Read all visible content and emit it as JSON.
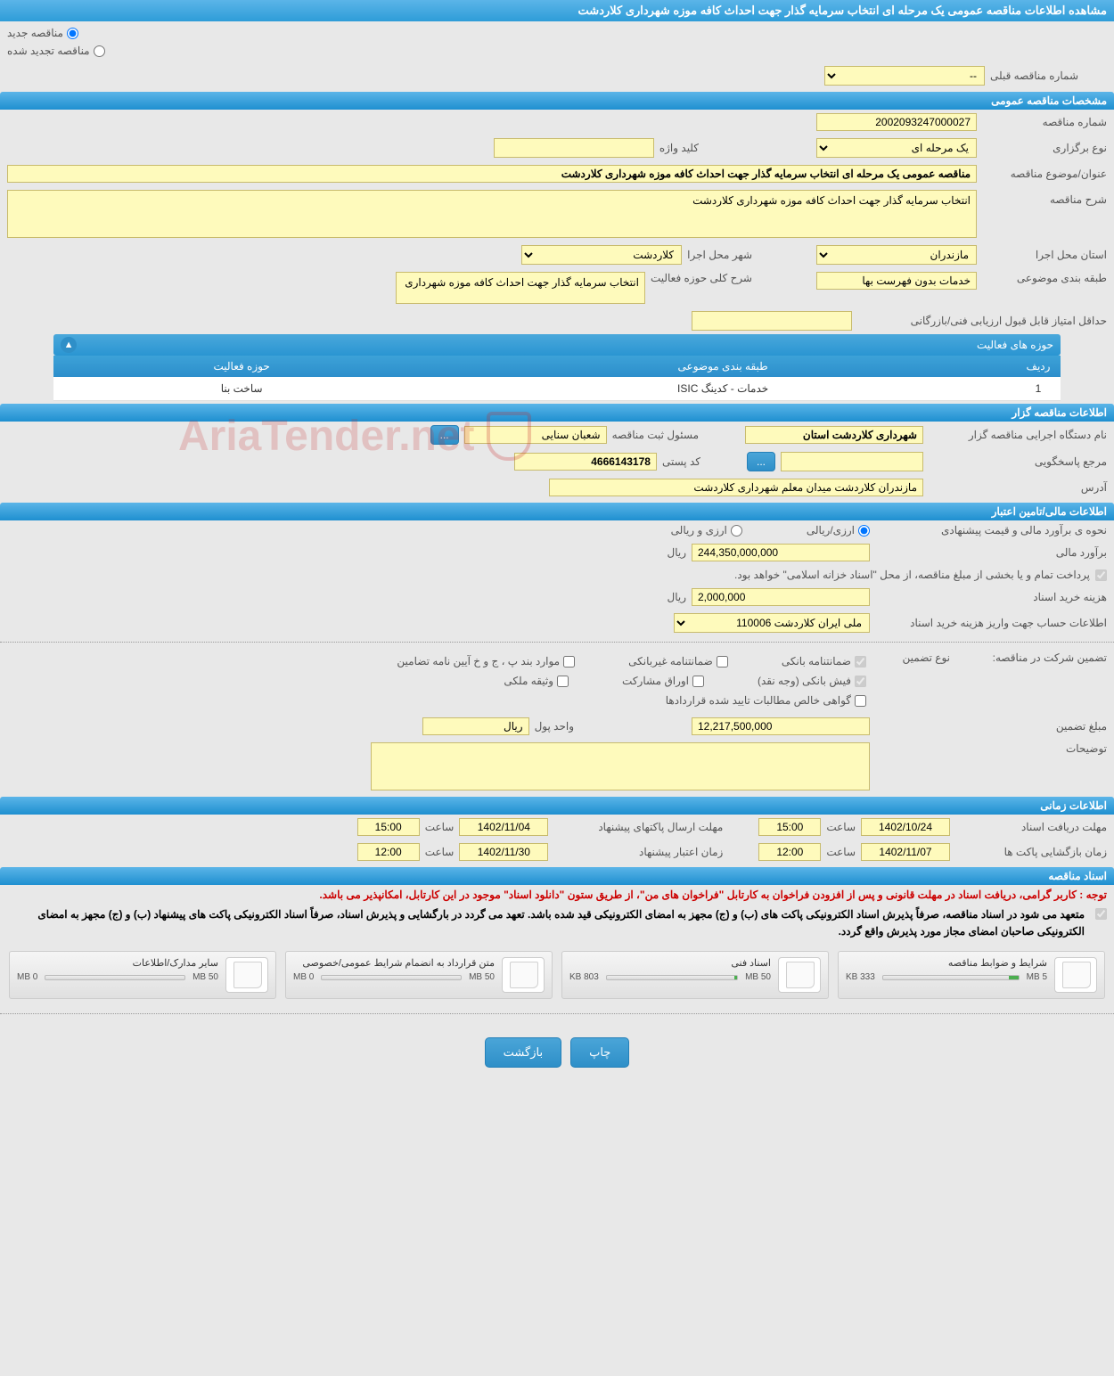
{
  "page_title": "مشاهده اطلاعات مناقصه عمومی یک مرحله ای انتخاب سرمایه گذار جهت احداث کافه موزه شهرداری کلاردشت",
  "tender_type": {
    "new_label": "مناقصه جدید",
    "renew_label": "مناقصه تجدید شده"
  },
  "prev_number": {
    "label": "شماره مناقصه قبلی",
    "value": "--"
  },
  "sections": {
    "general": "مشخصات مناقصه عمومی",
    "activity": "حوزه های فعالیت",
    "owner": "اطلاعات مناقصه گزار",
    "finance": "اطلاعات مالی/تامین اعتبار",
    "time": "اطلاعات زمانی",
    "docs": "اسناد مناقصه"
  },
  "general": {
    "number_label": "شماره مناقصه",
    "number_value": "2002093247000027",
    "type_label": "نوع برگزاری",
    "type_value": "یک مرحله ای",
    "keyword_label": "کلید واژه",
    "keyword_value": "",
    "subject_label": "عنوان/موضوع مناقصه",
    "subject_value": "مناقصه عمومی یک مرحله ای انتخاب سرمایه گذار جهت احداث کافه موزه شهرداری کلاردشت",
    "desc_label": "شرح مناقصه",
    "desc_value": "انتخاب سرمایه گذار جهت احداث کافه موزه شهرداری کلاردشت",
    "province_label": "استان محل اجرا",
    "province_value": "مازندران",
    "city_label": "شهر محل اجرا",
    "city_value": "کلاردشت",
    "class_label": "طبقه بندی موضوعی",
    "class_value": "خدمات بدون فهرست بها",
    "scope_label": "شرح کلی حوزه فعالیت",
    "scope_value": "انتخاب سرمایه گذار جهت احداث کافه موزه شهرداری",
    "min_score_label": "حداقل امتیاز قابل قبول ارزیابی فنی/بازرگانی",
    "min_score_value": ""
  },
  "activity_table": {
    "headers": {
      "row": "ردیف",
      "class": "طبقه بندی موضوعی",
      "scope": "حوزه فعالیت"
    },
    "rows": [
      {
        "n": "1",
        "class": "خدمات - کدینگ ISIC",
        "scope": "ساخت بنا"
      }
    ]
  },
  "owner": {
    "org_label": "نام دستگاه اجرایی مناقصه گزار",
    "org_value": "شهرداری کلاردشت استان",
    "resp_label": "مسئول ثبت مناقصه",
    "resp_value": "شعبان سنایی",
    "feedback_label": "مرجع پاسخگویی",
    "feedback_btn": "...",
    "postal_label": "کد پستی",
    "postal_value": "4666143178",
    "address_label": "آدرس",
    "address_value": "مازندران کلاردشت میدان معلم شهرداری کلاردشت"
  },
  "finance": {
    "est_type_label": "نحوه ی برآورد مالی و قیمت پیشنهادی",
    "opt_rial": "ارزی/ریالی",
    "opt_both": "ارزی و ریالی",
    "est_label": "برآورد مالی",
    "est_value": "244,350,000,000",
    "est_unit": "ریال",
    "note_treasury": "پرداخت تمام و یا بخشی از مبلغ مناقصه، از محل \"اسناد خزانه اسلامی\" خواهد بود.",
    "doc_fee_label": "هزینه خرید اسناد",
    "doc_fee_value": "2,000,000",
    "doc_fee_unit": "ریال",
    "acct_label": "اطلاعات حساب جهت واریز هزینه خرید اسناد",
    "acct_value": "ملی ایران کلاردشت 110006",
    "guarantee_label": "تضمین شرکت در مناقصه:",
    "guarantee_type_label": "نوع تضمین",
    "chk_bank": "ضمانتنامه بانکی",
    "chk_nonbank": "ضمانتنامه غیربانکی",
    "chk_bondbph": "موارد بند پ ، ج و خ آیین نامه تضامین",
    "chk_fish": "فیش بانکی (وجه نقد)",
    "chk_stock": "اوراق مشارکت",
    "chk_vasigheh": "وثیقه ملکی",
    "chk_govahi": "گواهی خالص مطالبات تایید شده قراردادها",
    "amount_label": "مبلغ تضمین",
    "amount_value": "12,217,500,000",
    "unit_label": "واحد پول",
    "unit_value": "ریال",
    "notes_label": "توضیحات"
  },
  "time": {
    "receive_label": "مهلت دریافت اسناد",
    "receive_date": "1402/10/24",
    "receive_time": "15:00",
    "send_label": "مهلت ارسال پاکتهای پیشنهاد",
    "send_date": "1402/11/04",
    "send_time": "15:00",
    "open_label": "زمان بازگشایی پاکت ها",
    "open_date": "1402/11/07",
    "open_time": "12:00",
    "valid_label": "زمان اعتبار پیشنهاد",
    "valid_date": "1402/11/30",
    "valid_time": "12:00",
    "time_lbl": "ساعت"
  },
  "docs_notice_red": "توجه : کاربر گرامی، دریافت اسناد در مهلت قانونی و پس از افزودن فراخوان به کارتابل \"فراخوان های من\"، از طریق ستون \"دانلود اسناد\" موجود در این کارتابل، امکانپذیر می باشد.",
  "docs_notice_black": "متعهد می شود در اسناد مناقصه، صرفاً پذیرش اسناد الکترونیکی پاکت های (ب) و (ج) مجهز به امضای الکترونیکی قید شده باشد. تعهد می گردد در بارگشایی و پذیرش اسناد، صرفاً اسناد الکترونیکی پاکت های پیشنهاد (ب) و (ج) مجهز به امضای الکترونیکی صاحبان امضای مجاز مورد پذیرش واقع گردد.",
  "docs": [
    {
      "title": "شرایط و ضوابط مناقصه",
      "size": "333 KB",
      "max": "5 MB",
      "fill_pct": 7
    },
    {
      "title": "اسناد فنی",
      "size": "803 KB",
      "max": "50 MB",
      "fill_pct": 2
    },
    {
      "title": "متن قرارداد به انضمام شرایط عمومی/خصوصی",
      "size": "0 MB",
      "max": "50 MB",
      "fill_pct": 0
    },
    {
      "title": "سایر مدارک/اطلاعات",
      "size": "0 MB",
      "max": "50 MB",
      "fill_pct": 0
    }
  ],
  "buttons": {
    "print": "چاپ",
    "back": "بازگشت"
  },
  "watermark": "AriaTender.net"
}
